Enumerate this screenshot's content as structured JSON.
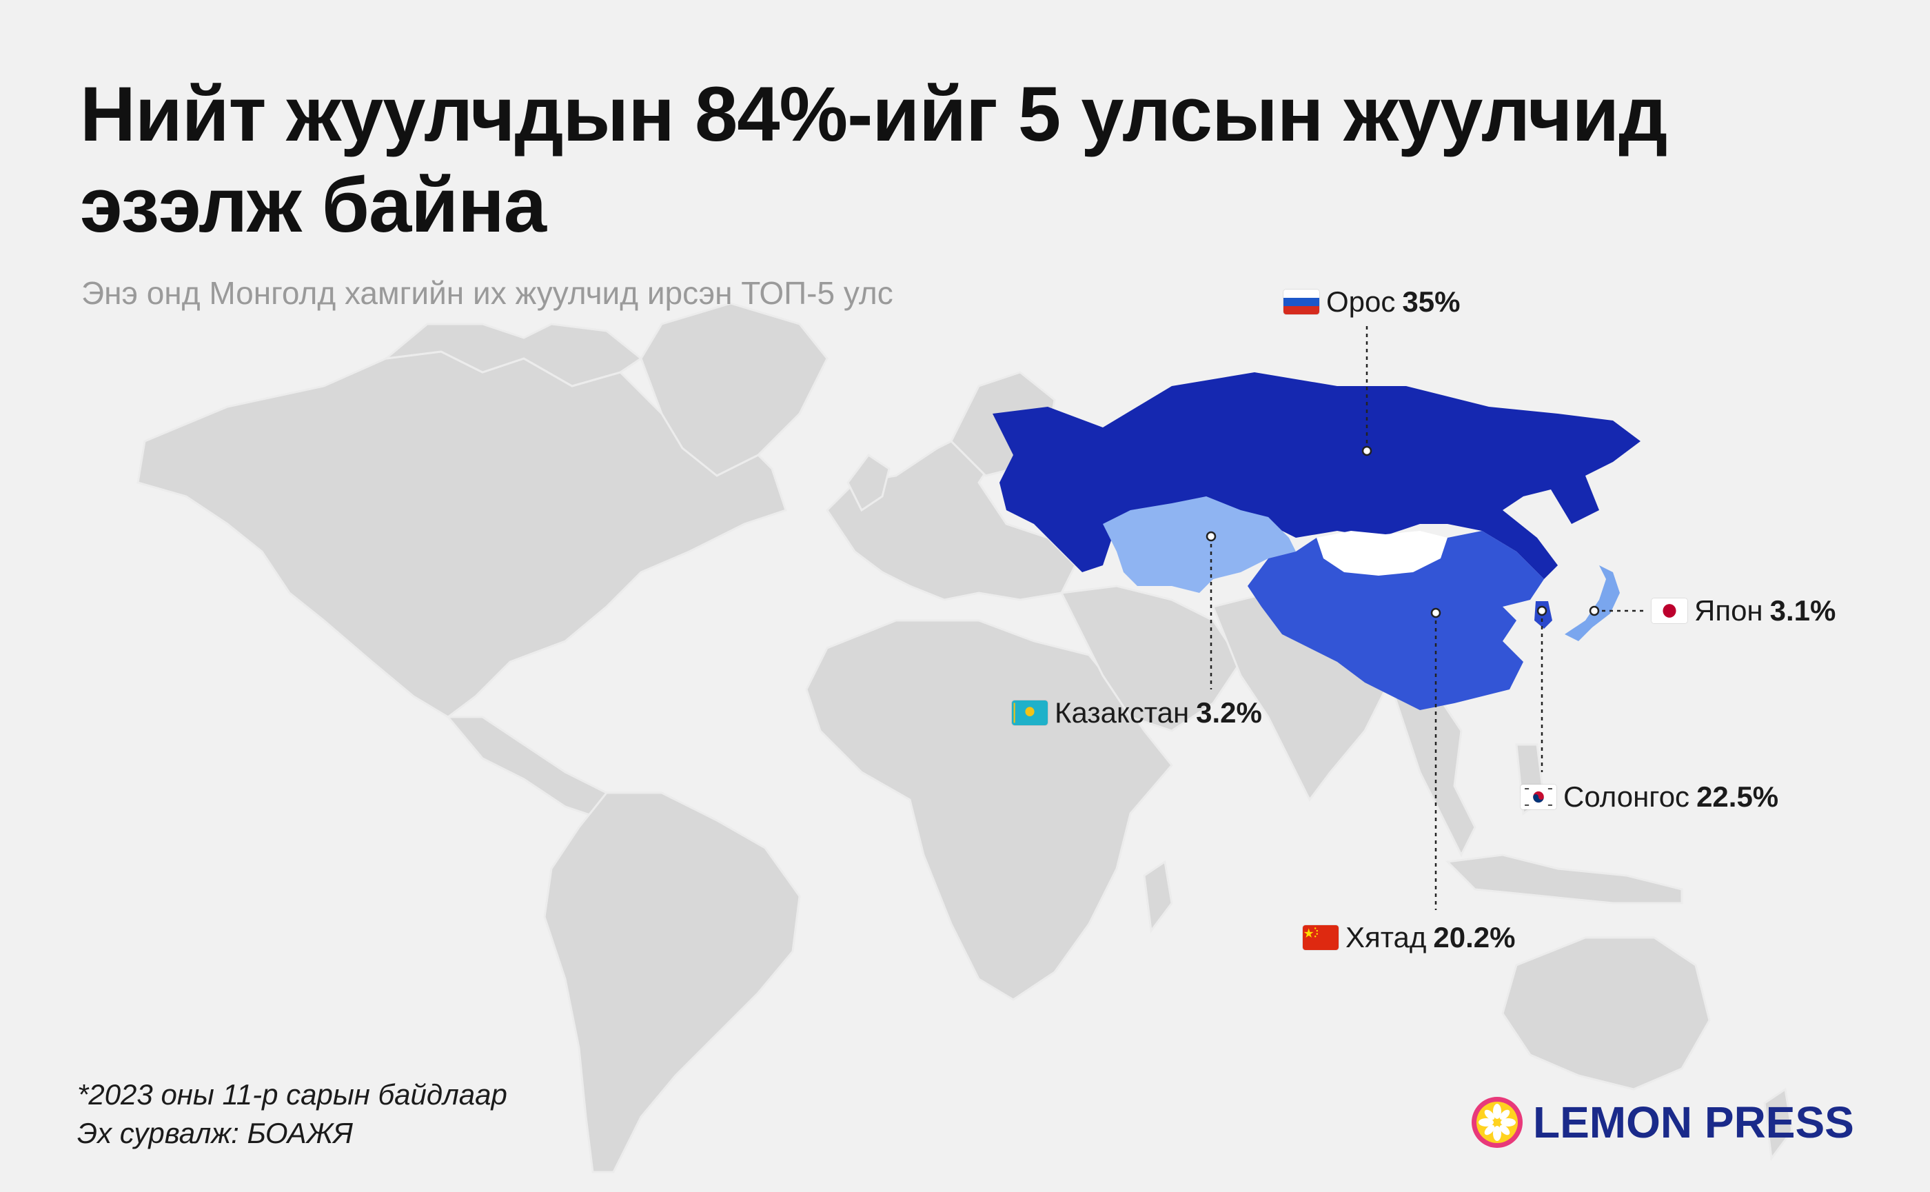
{
  "title": "Нийт жуулчдын 84%-ийг 5 улсын жуулчид эзэлж байна",
  "subtitle": "Энэ онд Монголд хамгийн их жуулчид ирсэн ТОП-5 улс",
  "colors": {
    "background": "#f1f1f1",
    "land": "#d8d8d8",
    "russia": "#1528b0",
    "china": "#3355d6",
    "kazakhstan": "#8fb4f2",
    "korea": "#2a48cc",
    "japan": "#7aa6ee",
    "mongolia": "#ffffff",
    "brand": "#1a2a8a"
  },
  "countries": [
    {
      "name": "Орос",
      "value": "35%",
      "flag": "russia-flag-icon"
    },
    {
      "name": "Казакстан",
      "value": "3.2%",
      "flag": "kazakhstan-flag-icon"
    },
    {
      "name": "Хятад",
      "value": "20.2%",
      "flag": "china-flag-icon"
    },
    {
      "name": "Солонгос",
      "value": "22.5%",
      "flag": "south-korea-flag-icon"
    },
    {
      "name": "Япон",
      "value": "3.1%",
      "flag": "japan-flag-icon"
    }
  ],
  "footnote": {
    "line1": "*2023 оны 11-р сарын байдлаар",
    "line2": "Эх сурвалж: БОАЖЯ"
  },
  "brand": {
    "name": "LEMON PRESS",
    "icon": "lemon-logo-icon"
  }
}
